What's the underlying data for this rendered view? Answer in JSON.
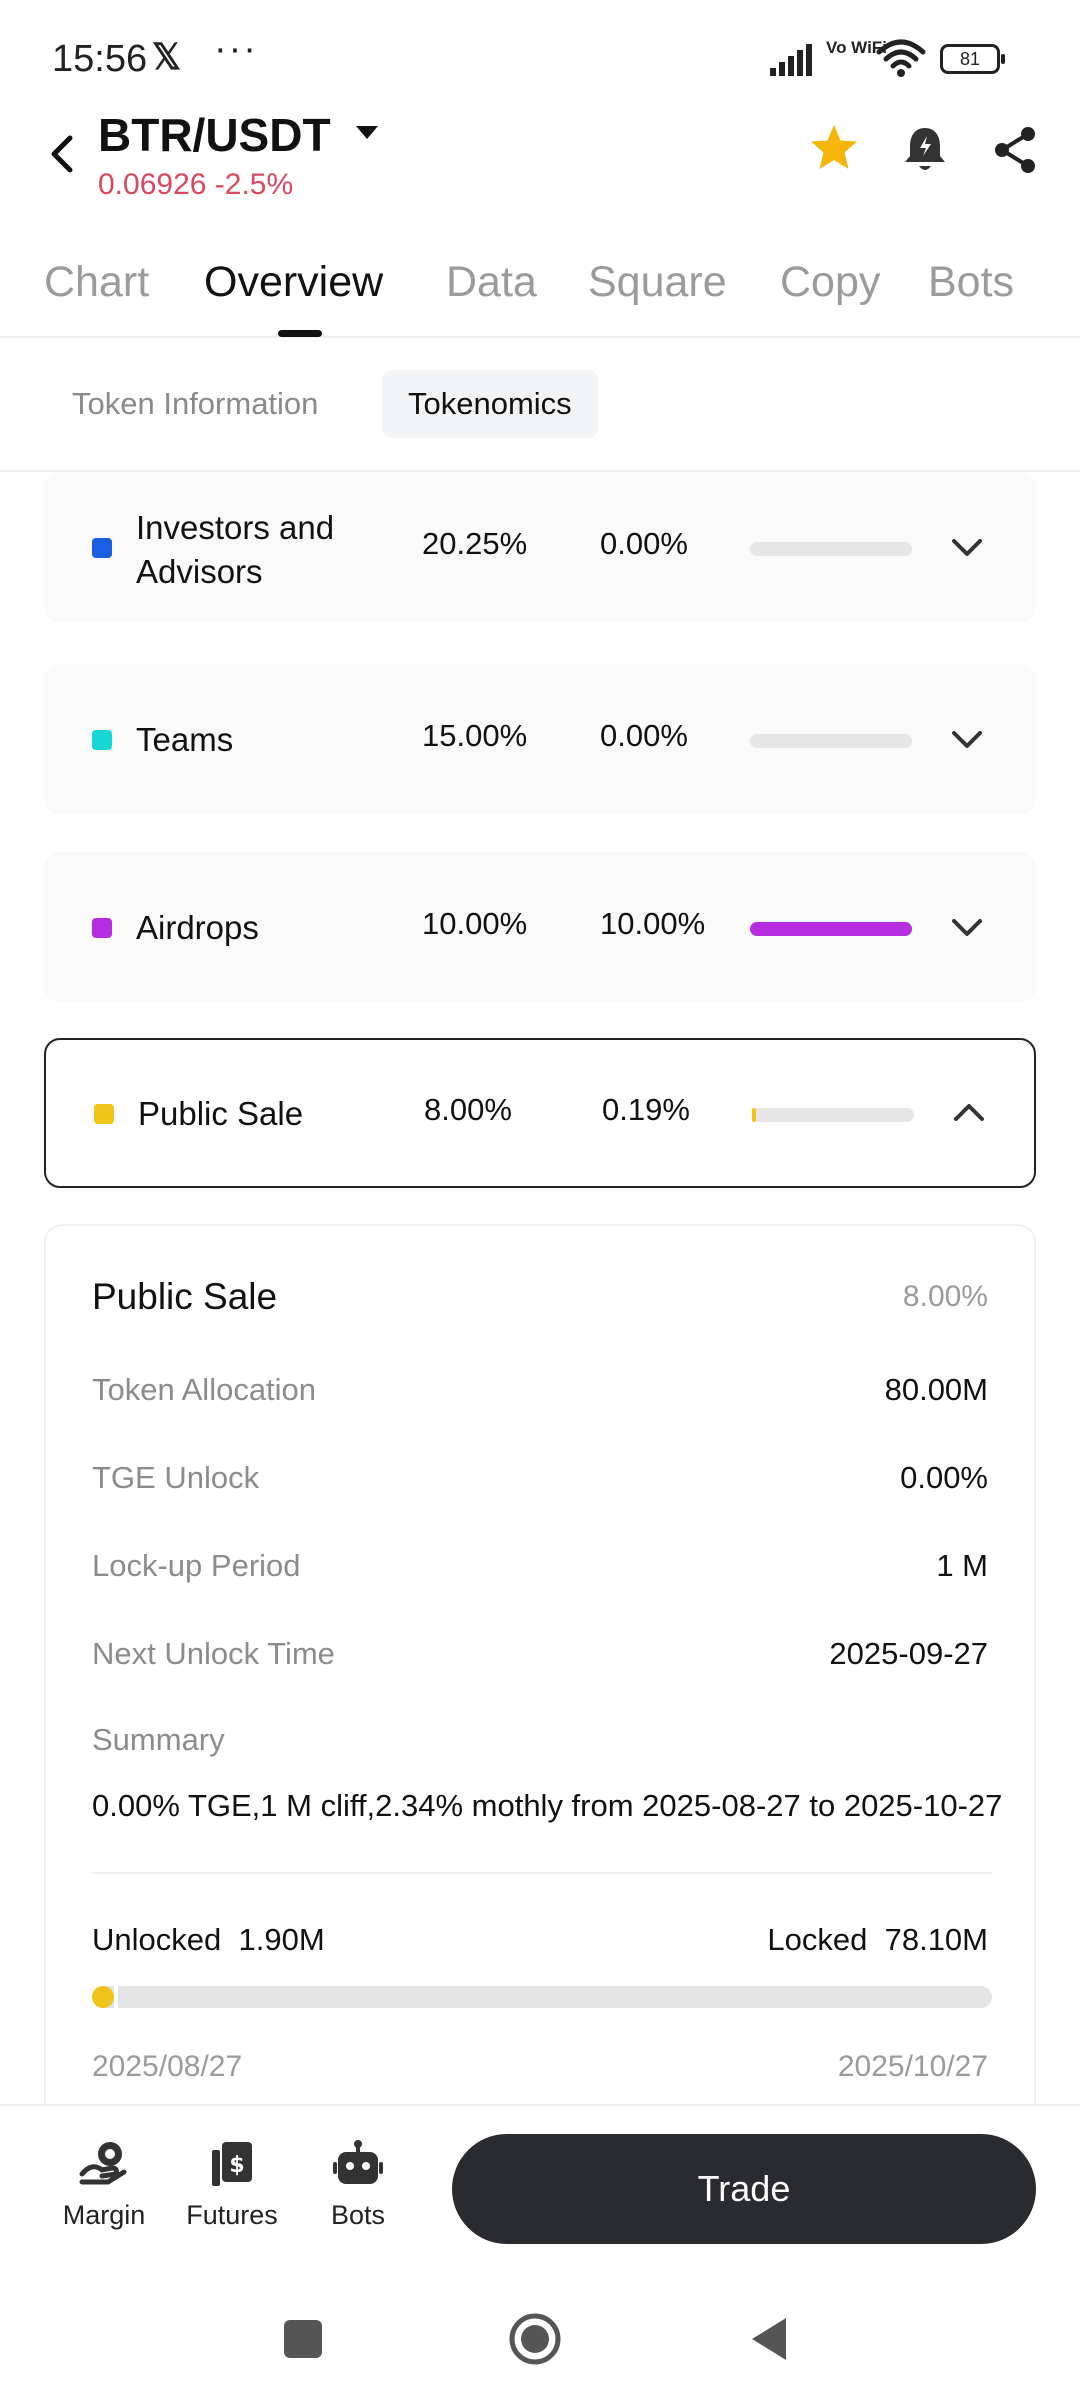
{
  "status_bar": {
    "time": "15:56",
    "app_icon": "𝕏",
    "more": "···",
    "network": "Vo WiFi",
    "battery": "81"
  },
  "header": {
    "pair": "BTR/USDT",
    "price": "0.06926",
    "change": "-2.5%",
    "change_color": "#d9485f",
    "favorite_color": "#f5b50a"
  },
  "main_tabs": [
    {
      "label": "Chart",
      "active": false
    },
    {
      "label": "Overview",
      "active": true
    },
    {
      "label": "Data",
      "active": false
    },
    {
      "label": "Square",
      "active": false
    },
    {
      "label": "Copy",
      "active": false
    },
    {
      "label": "Bots",
      "active": false
    }
  ],
  "sub_tabs": [
    {
      "label": "Token Information",
      "active": false
    },
    {
      "label": "Tokenomics",
      "active": true
    }
  ],
  "allocations": [
    {
      "name_line1": "Investors and",
      "name_line2": "Advisors",
      "percent": "20.25%",
      "unlocked": "0.00%",
      "color": "#1a5fe6",
      "unlock_fraction": 0.0,
      "expanded": false
    },
    {
      "name_line1": "Teams",
      "name_line2": "",
      "percent": "15.00%",
      "unlocked": "0.00%",
      "color": "#1ad7d7",
      "unlock_fraction": 0.0,
      "expanded": false
    },
    {
      "name_line1": "Airdrops",
      "name_line2": "",
      "percent": "10.00%",
      "unlocked": "10.00%",
      "color": "#b62ee0",
      "unlock_fraction": 1.0,
      "expanded": false
    },
    {
      "name_line1": "Public Sale",
      "name_line2": "",
      "percent": "8.00%",
      "unlocked": "0.19%",
      "color": "#f0c419",
      "unlock_fraction": 0.024,
      "expanded": true
    }
  ],
  "detail": {
    "title": "Public Sale",
    "title_percent": "8.00%",
    "rows": [
      {
        "label": "Token Allocation",
        "value": "80.00M"
      },
      {
        "label": "TGE Unlock",
        "value": "0.00%"
      },
      {
        "label": "Lock-up Period",
        "value": "1 M"
      },
      {
        "label": "Next Unlock Time",
        "value": "2025-09-27"
      }
    ],
    "summary_label": "Summary",
    "summary_text": "0.00% TGE,1 M cliff,2.34% mothly from 2025-08-27 to 2025-10-27",
    "unlocked_label": "Unlocked",
    "unlocked_value": "1.90M",
    "locked_label": "Locked",
    "locked_value": "78.10M",
    "unlocked_fraction": 0.024,
    "start_date": "2025/08/27",
    "end_date": "2025/10/27"
  },
  "bottom_nav": [
    {
      "label": "Margin",
      "icon": "margin-icon"
    },
    {
      "label": "Futures",
      "icon": "futures-icon"
    },
    {
      "label": "Bots",
      "icon": "bots-icon"
    }
  ],
  "trade_button": "Trade"
}
